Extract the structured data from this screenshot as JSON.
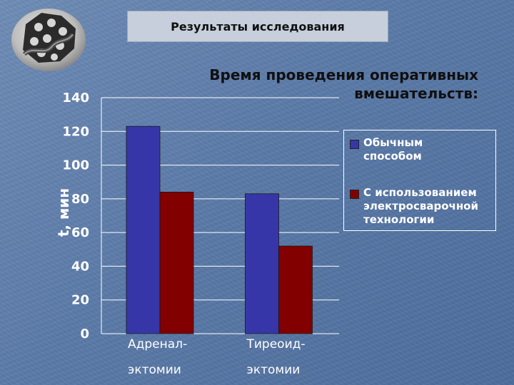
{
  "header": {
    "title": "Результаты исследования"
  },
  "colors": {
    "series1": "#3636a8",
    "series2": "#820000",
    "axis": "#ffffff"
  },
  "logo": {
    "icon": "gear-chain-icon"
  },
  "chart_data": {
    "type": "bar",
    "title": "Время проведения оперативных\nвмешательств:",
    "ylabel": "t, мин",
    "xlabel": "",
    "ylim": [
      0,
      140
    ],
    "yticks": [
      "0",
      "20",
      "40",
      "60",
      "80",
      "100",
      "120",
      "140"
    ],
    "categories": [
      [
        "Адренал-",
        "эктомии"
      ],
      [
        "Тиреоид-",
        "эктомии"
      ]
    ],
    "series": [
      {
        "name": "Обычным\nспособом",
        "values": [
          123,
          83
        ]
      },
      {
        "name": "С использованием\nэлектросварочной\nтехнологии",
        "values": [
          84,
          52
        ]
      }
    ],
    "grid": true,
    "legend": "right"
  }
}
